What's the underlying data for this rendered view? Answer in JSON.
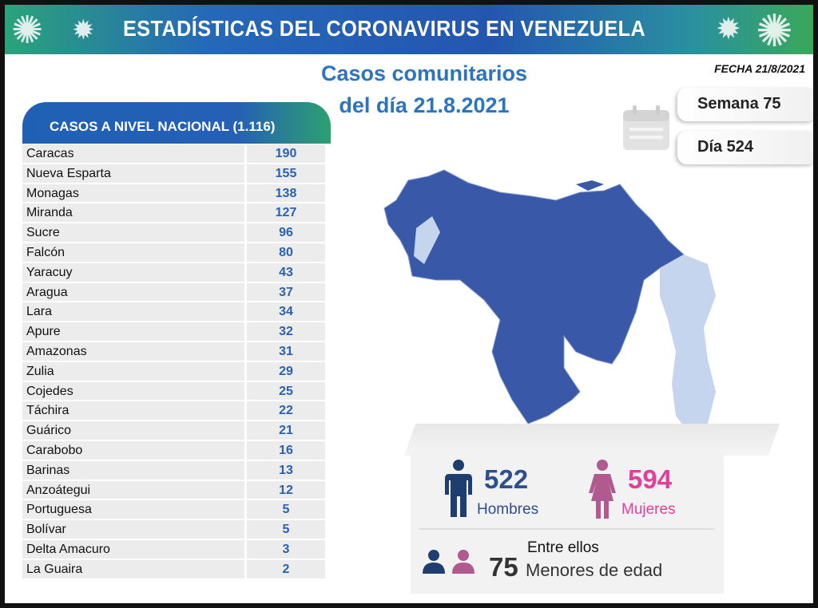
{
  "banner": {
    "title": "ESTADÍSTICAS DEL CORONAVIRUS EN VENEZUELA",
    "icons": [
      "virus-icon"
    ]
  },
  "subtitle": {
    "line1": "Casos comunitarios",
    "line2": "del día 21.8.2021"
  },
  "fecha": "FECHA 21/8/2021",
  "semana": "Semana 75",
  "dia": "Día 524",
  "table": {
    "header": "CASOS A NIVEL NACIONAL (1.116)",
    "rows": [
      {
        "name": "Caracas",
        "value": "190"
      },
      {
        "name": "Nueva Esparta",
        "value": "155"
      },
      {
        "name": "Monagas",
        "value": "138"
      },
      {
        "name": "Miranda",
        "value": "127"
      },
      {
        "name": "Sucre",
        "value": "96"
      },
      {
        "name": "Falcón",
        "value": "80"
      },
      {
        "name": "Yaracuy",
        "value": "43"
      },
      {
        "name": "Aragua",
        "value": "37"
      },
      {
        "name": "Lara",
        "value": "34"
      },
      {
        "name": "Apure",
        "value": "32"
      },
      {
        "name": "Amazonas",
        "value": "31"
      },
      {
        "name": "Zulia",
        "value": "29"
      },
      {
        "name": "Cojedes",
        "value": "25"
      },
      {
        "name": "Táchira",
        "value": "22"
      },
      {
        "name": "Guárico",
        "value": "21"
      },
      {
        "name": "Carabobo",
        "value": "16"
      },
      {
        "name": "Barinas",
        "value": "13"
      },
      {
        "name": "Anzoátegui",
        "value": "12"
      },
      {
        "name": "Portuguesa",
        "value": "5"
      },
      {
        "name": "Bolívar",
        "value": "5"
      },
      {
        "name": "Delta Amacuro",
        "value": "3"
      },
      {
        "name": "La Guaira",
        "value": "2"
      }
    ]
  },
  "stats": {
    "men": {
      "value": "522",
      "label": "Hombres",
      "color": "#2d4f8e"
    },
    "women": {
      "value": "594",
      "label": "Mujeres",
      "color": "#e0409a"
    },
    "minors": {
      "intro": "Entre ellos",
      "value": "75",
      "label": "Menores de edad"
    }
  },
  "colors": {
    "map_dark": "#3a58a8",
    "map_light": "#c5d5ee",
    "value_text": "#2862b0"
  }
}
